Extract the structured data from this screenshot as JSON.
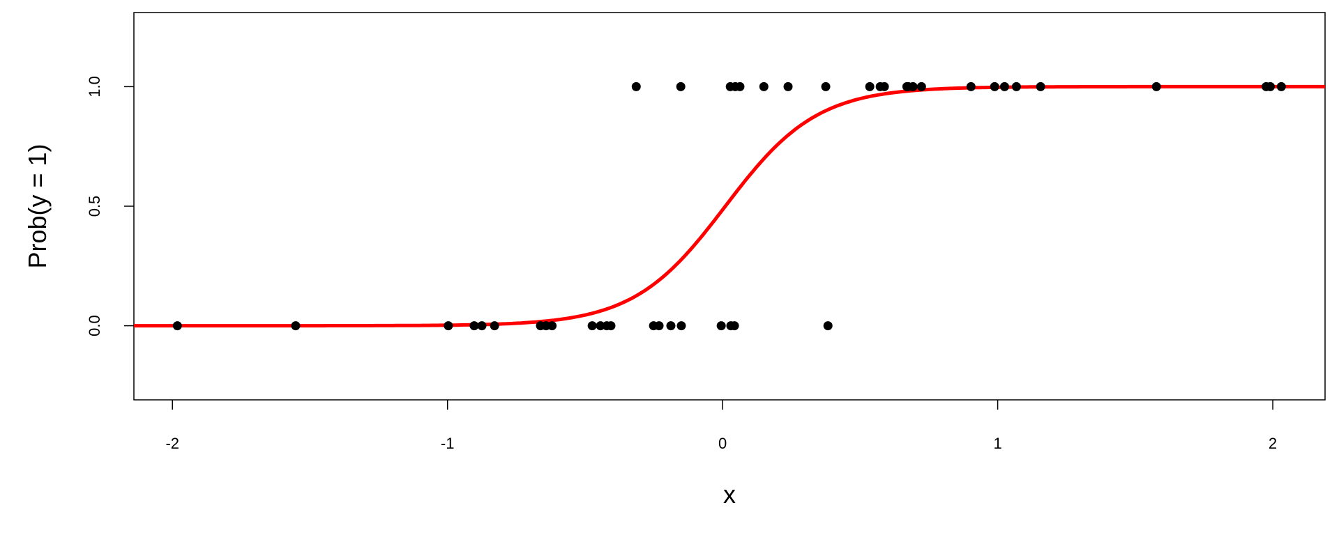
{
  "chart_data": {
    "type": "scatter",
    "title": "",
    "xlabel": "x",
    "ylabel": "Prob(y = 1)",
    "xlim": [
      -2.14,
      2.19
    ],
    "ylim": [
      -0.31,
      1.31
    ],
    "xticks": [
      -2,
      -1,
      0,
      1,
      2
    ],
    "xtick_labels": [
      "-2",
      "-1",
      "0",
      "1",
      "2"
    ],
    "yticks": [
      0,
      0.5,
      1
    ],
    "ytick_labels": [
      "0.0",
      "0.5",
      "1.0"
    ],
    "grid": false,
    "points_y1": [
      -0.314,
      -0.152,
      0.028,
      0.046,
      0.063,
      0.15,
      0.238,
      0.375,
      0.535,
      0.573,
      0.588,
      0.67,
      0.675,
      0.692,
      0.723,
      0.903,
      0.989,
      1.025,
      1.068,
      1.156,
      1.577,
      1.976,
      1.991,
      2.031
    ],
    "points_y0": [
      -1.982,
      -1.552,
      -0.997,
      -0.903,
      -0.875,
      -0.829,
      -0.662,
      -0.642,
      -0.62,
      -0.474,
      -0.444,
      -0.421,
      -0.406,
      -0.251,
      -0.231,
      -0.188,
      -0.15,
      -0.005,
      0.03,
      0.043,
      0.383
    ],
    "fitted_curve": {
      "type": "logistic",
      "midpoint": 0.01,
      "slope": 6.0,
      "color": "#ff0000"
    },
    "point_color": "#000000"
  }
}
